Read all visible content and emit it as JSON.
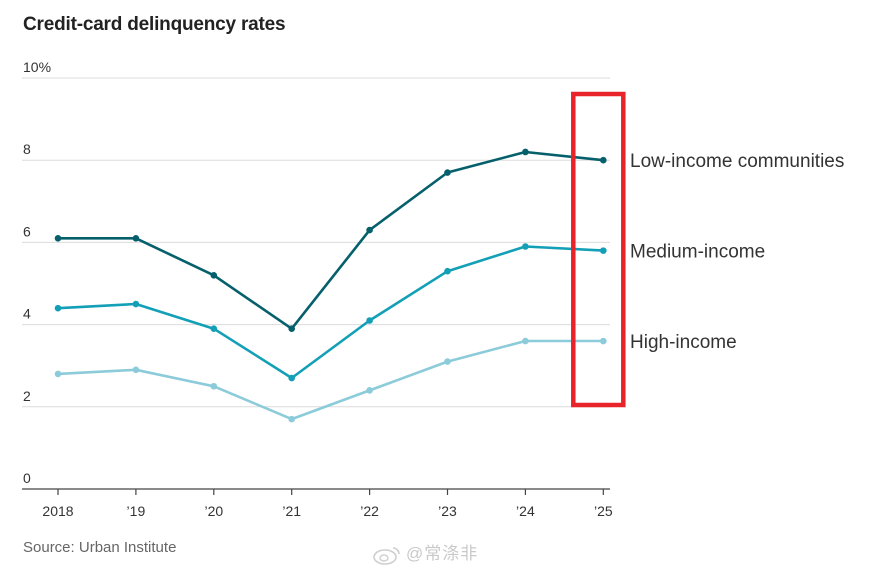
{
  "title": "Credit-card delinquency rates",
  "source": "Source: Urban Institute",
  "watermark": "@常涤非",
  "chart_data": {
    "type": "line",
    "title": "Credit-card delinquency rates",
    "xlabel": "",
    "ylabel": "",
    "ylim": [
      0,
      10
    ],
    "y_ticks": [
      0,
      2,
      4,
      6,
      8,
      10
    ],
    "y_tick_labels": [
      "0",
      "2",
      "4",
      "6",
      "8",
      "10%"
    ],
    "x_tick_labels": [
      "2018",
      "’19",
      "’20",
      "’21",
      "’22",
      "’23",
      "’24",
      "’25"
    ],
    "grid": true,
    "highlight": {
      "category_index": 7,
      "color": "#e8232a"
    },
    "series": [
      {
        "name": "Low-income communities",
        "color": "#05606b",
        "values": [
          6.1,
          6.1,
          5.2,
          3.9,
          6.3,
          7.7,
          8.2,
          8.0
        ]
      },
      {
        "name": "Medium-income",
        "color": "#13a0b7",
        "values": [
          4.4,
          4.5,
          3.9,
          2.7,
          4.1,
          5.3,
          5.9,
          5.8
        ]
      },
      {
        "name": "High-income",
        "color": "#8ccbd9",
        "values": [
          2.8,
          2.9,
          2.5,
          1.7,
          2.4,
          3.1,
          3.6,
          3.6
        ]
      }
    ]
  }
}
